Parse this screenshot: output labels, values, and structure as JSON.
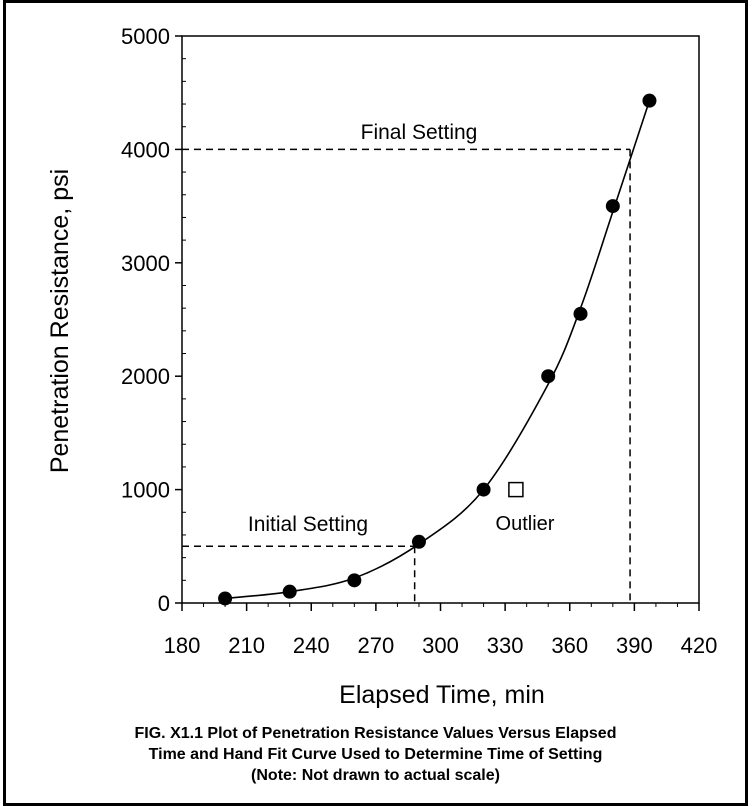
{
  "chart_data": {
    "type": "scatter",
    "xlabel": "Elapsed Time, min",
    "ylabel": "Penetration Resistance, psi",
    "xlim": [
      180,
      420
    ],
    "ylim": [
      0,
      5000
    ],
    "x_ticks": [
      "180",
      "210",
      "240",
      "270",
      "300",
      "330",
      "360",
      "390",
      "420"
    ],
    "y_ticks": [
      "0",
      "1000",
      "2000",
      "3000",
      "4000",
      "5000"
    ],
    "grid": false,
    "series": [
      {
        "marker": "filled-circle",
        "x": [
          200,
          230,
          260,
          290,
          320,
          350,
          365,
          380,
          397
        ],
        "y": [
          40,
          100,
          200,
          540,
          1000,
          2000,
          2550,
          3500,
          4430
        ]
      },
      {
        "marker": "open-square",
        "x": [
          335
        ],
        "y": [
          1000
        ]
      }
    ],
    "fit_curve": {
      "x": [
        200,
        230,
        260,
        290,
        320,
        350,
        365,
        380,
        397
      ],
      "y": [
        40,
        100,
        220,
        520,
        1000,
        1930,
        2600,
        3450,
        4430
      ]
    },
    "annotations": {
      "initial_setting": {
        "label": "Initial Setting",
        "resistance": 500,
        "time": 288
      },
      "final_setting": {
        "label": "Final Setting",
        "resistance": 4000,
        "time": 388
      },
      "outlier": {
        "label": "Outlier"
      }
    }
  },
  "caption": {
    "line1": "FIG. X1.1  Plot of Penetration Resistance Values Versus Elapsed",
    "line2": "Time and Hand Fit Curve Used to Determine Time of Setting",
    "line3": "(Note: Not drawn to actual scale)"
  }
}
